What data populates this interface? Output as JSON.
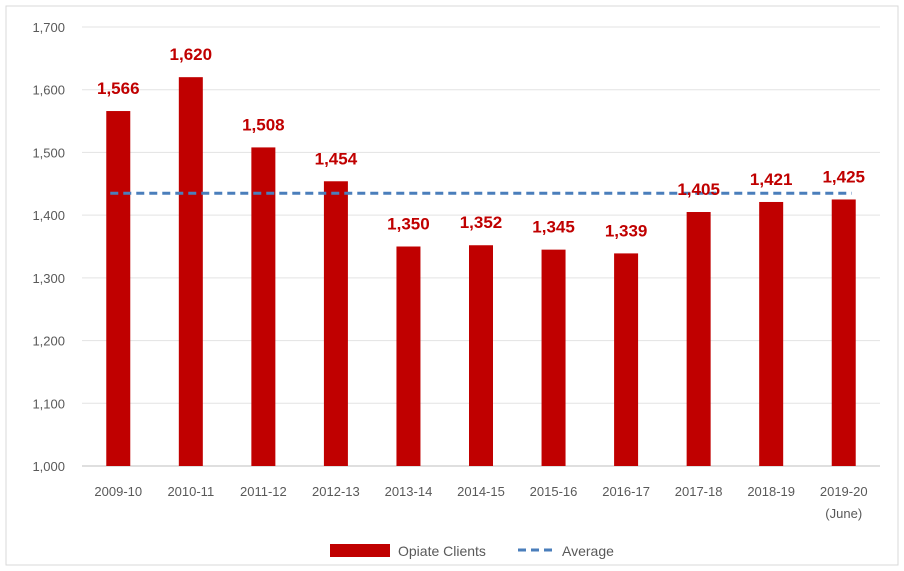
{
  "chart_data": {
    "type": "bar",
    "categories": [
      "2009-10",
      "2010-11",
      "2011-12",
      "2012-13",
      "2013-14",
      "2014-15",
      "2015-16",
      "2016-17",
      "2017-18",
      "2018-19",
      "2019-20 (June)"
    ],
    "category_lines": [
      [
        "2009-10"
      ],
      [
        "2010-11"
      ],
      [
        "2011-12"
      ],
      [
        "2012-13"
      ],
      [
        "2013-14"
      ],
      [
        "2014-15"
      ],
      [
        "2015-16"
      ],
      [
        "2016-17"
      ],
      [
        "2017-18"
      ],
      [
        "2018-19"
      ],
      [
        "2019-20",
        "(June)"
      ]
    ],
    "series": [
      {
        "name": "Opiate Clients",
        "values": [
          1566,
          1620,
          1508,
          1454,
          1350,
          1352,
          1345,
          1339,
          1405,
          1421,
          1425
        ],
        "labels": [
          "1,566",
          "1,620",
          "1,508",
          "1,454",
          "1,350",
          "1,352",
          "1,345",
          "1,339",
          "1,405",
          "1,421",
          "1,425"
        ],
        "color": "#c00000"
      }
    ],
    "average": {
      "name": "Average",
      "value": 1435,
      "color": "#4a7ebb",
      "style": "dashed"
    },
    "ylim": [
      1000,
      1700
    ],
    "yticks": [
      1000,
      1100,
      1200,
      1300,
      1400,
      1500,
      1600,
      1700
    ],
    "ytick_labels": [
      "1,000",
      "1,100",
      "1,200",
      "1,300",
      "1,400",
      "1,500",
      "1,600",
      "1,700"
    ],
    "grid": true,
    "legend_position": "bottom",
    "title": "",
    "xlabel": "",
    "ylabel": ""
  }
}
